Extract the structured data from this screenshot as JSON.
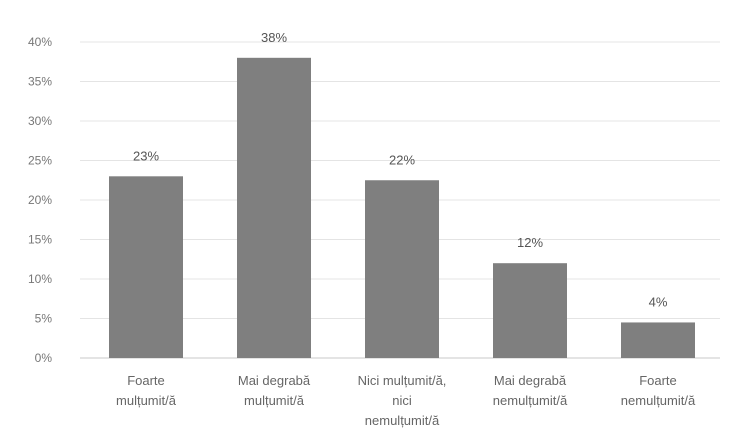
{
  "chart_data": {
    "type": "bar",
    "categories": [
      [
        "Foarte",
        "mulțumit/ă"
      ],
      [
        "Mai degrabă",
        "mulțumit/ă"
      ],
      [
        "Nici mulțumit/ă,",
        "nici",
        "nemulțumit/ă"
      ],
      [
        "Mai degrabă",
        "nemulțumit/ă"
      ],
      [
        "Foarte",
        "nemulțumit/ă"
      ]
    ],
    "values": [
      23,
      38,
      22.5,
      12,
      4.5
    ],
    "data_labels": [
      "23%",
      "38%",
      "22%",
      "12%",
      "4%"
    ],
    "ylim": [
      0,
      40
    ],
    "yticks": [
      0,
      5,
      10,
      15,
      20,
      25,
      30,
      35,
      40
    ],
    "ytick_labels": [
      "0%",
      "5%",
      "10%",
      "15%",
      "20%",
      "25%",
      "30%",
      "35%",
      "40%"
    ],
    "grid": true,
    "legend": "none",
    "bar_color": "#7f7f7f"
  }
}
